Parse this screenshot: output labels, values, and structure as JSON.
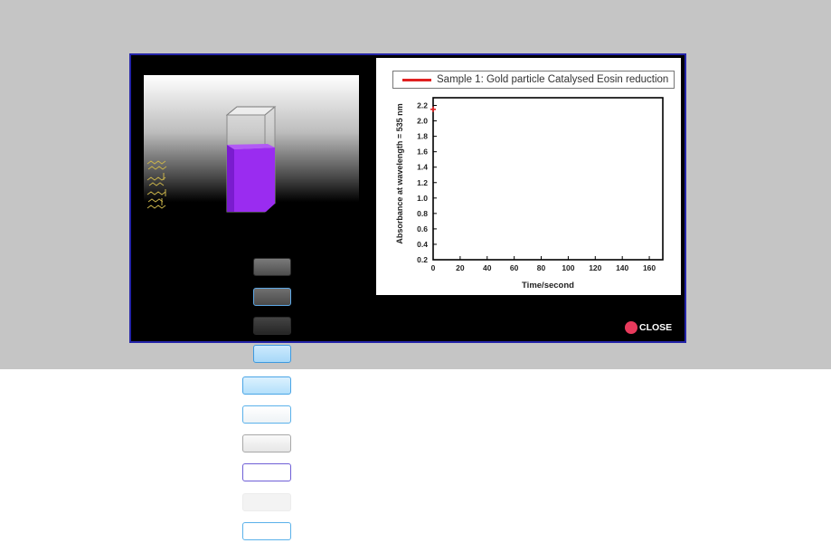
{
  "dialog": {
    "close_label": "CLOSE",
    "close_color": "#e83a5c",
    "solution_color": "#9a2cf0"
  },
  "chart_data": {
    "type": "scatter",
    "legend": [
      "Sample 1: Gold particle Catalysed Eosin reduction"
    ],
    "series": [
      {
        "name": "Sample 1: Gold particle Catalysed Eosin reduction",
        "color": "#e02020",
        "x": [
          0
        ],
        "y": [
          2.15
        ]
      }
    ],
    "xlabel": "Time/second",
    "ylabel": "Absorbance at wavelength = 535 nm",
    "xlim": [
      0,
      170
    ],
    "ylim": [
      0.2,
      2.3
    ],
    "x_ticks": [
      "0",
      "20",
      "40",
      "60",
      "80",
      "100",
      "120",
      "140",
      "160"
    ],
    "y_ticks": [
      "0.2",
      "0.4",
      "0.6",
      "0.8",
      "1.0",
      "1.2",
      "1.4",
      "1.6",
      "1.8",
      "2.0",
      "2.2"
    ],
    "legend_position": "top"
  }
}
